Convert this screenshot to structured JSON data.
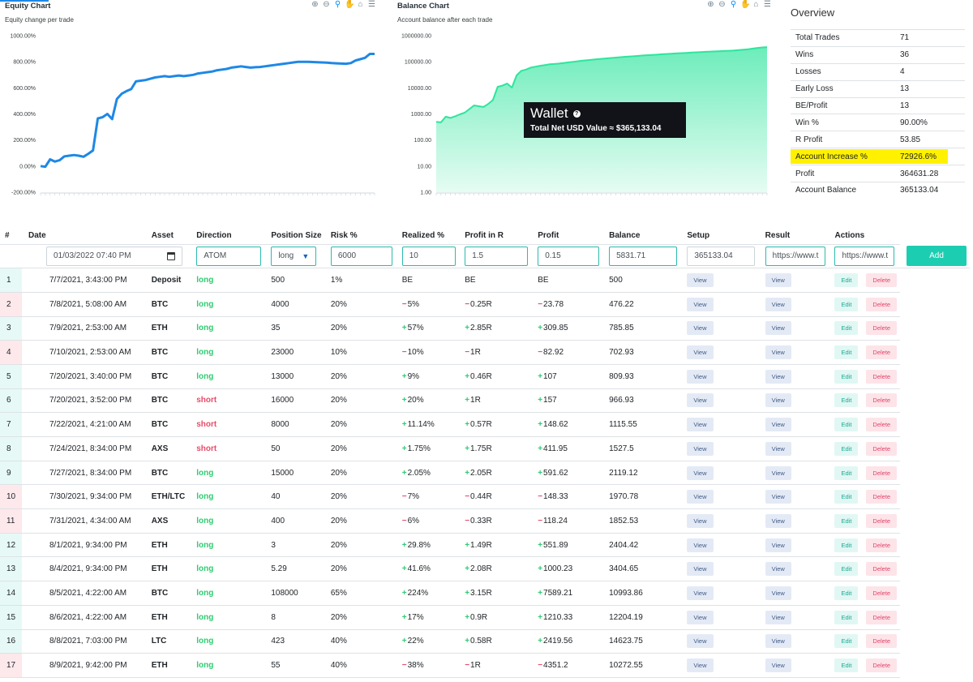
{
  "equity_chart": {
    "title": "Equity Chart",
    "subtitle": "Equity change per trade",
    "y_labels": [
      "1000.00%",
      "800.00%",
      "600.00%",
      "400.00%",
      "200.00%",
      "0.00%",
      "-200.00%"
    ],
    "color": "#1e88e5"
  },
  "balance_chart": {
    "title": "Balance Chart",
    "subtitle": "Account balance after each trade",
    "y_labels": [
      "1000000.00",
      "100000.00",
      "10000.00",
      "1000.00",
      "100.00",
      "10.00",
      "1.00"
    ],
    "color": "#2ee59d"
  },
  "chart_data": [
    {
      "type": "line",
      "title": "Equity Chart",
      "subtitle": "Equity change per trade",
      "ylim": [
        -200,
        1000
      ],
      "x": [
        1,
        2,
        3,
        4,
        5,
        6,
        7,
        8,
        9,
        10,
        11,
        12,
        13,
        14,
        15,
        16,
        17,
        18,
        19,
        20,
        21,
        22,
        23,
        24,
        25,
        26,
        27,
        28,
        29,
        30,
        31,
        32,
        33,
        34,
        35,
        36,
        37,
        38,
        39,
        40,
        41,
        42,
        43,
        44,
        45,
        46,
        47,
        48,
        49,
        50,
        51,
        52,
        53,
        54,
        55,
        56,
        57,
        58,
        59,
        60,
        61,
        62,
        63,
        64,
        65,
        66,
        67,
        68,
        69,
        70,
        71
      ],
      "y": [
        0,
        -5,
        52,
        35,
        45,
        75,
        80,
        85,
        80,
        72,
        95,
        120,
        365,
        375,
        400,
        360,
        515,
        555,
        575,
        590,
        650,
        655,
        660,
        670,
        680,
        685,
        690,
        685,
        690,
        695,
        690,
        695,
        700,
        710,
        715,
        720,
        725,
        735,
        740,
        745,
        755,
        760,
        765,
        760,
        755,
        758,
        760,
        765,
        770,
        775,
        780,
        785,
        790,
        795,
        800,
        800,
        800,
        798,
        796,
        795,
        793,
        790,
        788,
        786,
        785,
        790,
        810,
        820,
        830,
        860,
        860
      ],
      "color": "#1e88e5"
    },
    {
      "type": "area",
      "title": "Balance Chart",
      "subtitle": "Account balance after each trade",
      "yscale": "log",
      "ylim": [
        1,
        1000000
      ],
      "x": [
        1,
        2,
        3,
        4,
        5,
        6,
        7,
        8,
        9,
        10,
        11,
        12,
        13,
        14,
        15,
        16,
        17,
        18,
        19,
        20,
        21,
        22,
        23,
        24,
        25,
        26,
        27,
        28,
        29,
        30,
        31,
        32,
        33,
        34,
        35,
        36,
        37,
        38,
        39,
        40,
        41,
        42,
        43,
        44,
        45,
        46,
        47,
        48,
        49,
        50,
        51,
        52,
        53,
        54,
        55,
        56,
        57,
        58,
        59,
        60,
        61,
        62,
        63,
        64,
        65,
        66,
        67,
        68,
        69,
        70,
        71
      ],
      "y": [
        500,
        476.22,
        785.85,
        702.93,
        809.93,
        966.93,
        1115.55,
        1527.5,
        2119.12,
        1970.78,
        1852.53,
        2404.42,
        3404.65,
        10993.86,
        12204.19,
        14623.75,
        10272.55,
        30000,
        45000,
        50000,
        60000,
        65000,
        70000,
        75000,
        80000,
        82000,
        85000,
        90000,
        95000,
        100000,
        105000,
        110000,
        115000,
        120000,
        125000,
        130000,
        135000,
        140000,
        145000,
        150000,
        155000,
        160000,
        165000,
        170000,
        175000,
        180000,
        185000,
        190000,
        195000,
        200000,
        205000,
        210000,
        215000,
        220000,
        225000,
        230000,
        235000,
        240000,
        245000,
        250000,
        255000,
        260000,
        265000,
        270000,
        280000,
        290000,
        300000,
        320000,
        340000,
        355000,
        365133.04
      ],
      "color": "#2ee59d"
    }
  ],
  "wallet": {
    "title": "Wallet",
    "value_label": "Total Net USD Value ≈ $365,133.04"
  },
  "overview": {
    "title": "Overview",
    "rows": [
      {
        "k": "Total Trades",
        "v": "71"
      },
      {
        "k": "Wins",
        "v": "36"
      },
      {
        "k": "Losses",
        "v": "4"
      },
      {
        "k": "Early Loss",
        "v": "13"
      },
      {
        "k": "BE/Profit",
        "v": "13"
      },
      {
        "k": "Win %",
        "v": "90.00%"
      },
      {
        "k": "R Profit",
        "v": "53.85"
      },
      {
        "k": "Account Increase %",
        "v": "72926.6%"
      },
      {
        "k": "Profit",
        "v": "364631.28"
      },
      {
        "k": "Account Balance",
        "v": "365133.04"
      }
    ]
  },
  "table": {
    "headers": [
      "#",
      "Date",
      "Asset",
      "Direction",
      "Position Size",
      "Risk %",
      "Realized %",
      "Profit in R",
      "Profit",
      "Balance",
      "Setup",
      "Result",
      "Actions"
    ],
    "entry": {
      "date": "01/03/2022 07:40 PM",
      "asset": "ATOM",
      "direction": "long",
      "position_size": "6000",
      "risk": "10",
      "realized": "1.5",
      "profit_r": "0.15",
      "profit": "5831.71",
      "balance": "365133.04",
      "setup": "https://www.t",
      "result": "https://www.t",
      "add_label": "Add"
    },
    "buttons": {
      "view": "View",
      "edit": "Edit",
      "delete": "Delete"
    },
    "rows": [
      {
        "n": "1",
        "date": "7/7/2021, 3:43:00 PM",
        "asset": "Deposit",
        "dir": "long",
        "size": "500",
        "risk": "1%",
        "real": "BE",
        "r": "BE",
        "profit": "BE",
        "bal": "500"
      },
      {
        "n": "2",
        "date": "7/8/2021, 5:08:00 AM",
        "asset": "BTC",
        "dir": "long",
        "size": "4000",
        "risk": "20%",
        "real": "-5%",
        "r": "-0.25R",
        "profit": "-23.78",
        "bal": "476.22"
      },
      {
        "n": "3",
        "date": "7/9/2021, 2:53:00 AM",
        "asset": "ETH",
        "dir": "long",
        "size": "35",
        "risk": "20%",
        "real": "+57%",
        "r": "+2.85R",
        "profit": "+309.85",
        "bal": "785.85"
      },
      {
        "n": "4",
        "date": "7/10/2021, 2:53:00 AM",
        "asset": "BTC",
        "dir": "long",
        "size": "23000",
        "risk": "10%",
        "real": "-10%",
        "r": "-1R",
        "profit": "-82.92",
        "bal": "702.93"
      },
      {
        "n": "5",
        "date": "7/20/2021, 3:40:00 PM",
        "asset": "BTC",
        "dir": "long",
        "size": "13000",
        "risk": "20%",
        "real": "+9%",
        "r": "+0.46R",
        "profit": "+107",
        "bal": "809.93"
      },
      {
        "n": "6",
        "date": "7/20/2021, 3:52:00 PM",
        "asset": "BTC",
        "dir": "short",
        "size": "16000",
        "risk": "20%",
        "real": "+20%",
        "r": "+1R",
        "profit": "+157",
        "bal": "966.93"
      },
      {
        "n": "7",
        "date": "7/22/2021, 4:21:00 AM",
        "asset": "BTC",
        "dir": "short",
        "size": "8000",
        "risk": "20%",
        "real": "+11.14%",
        "r": "+0.57R",
        "profit": "+148.62",
        "bal": "1115.55"
      },
      {
        "n": "8",
        "date": "7/24/2021, 8:34:00 PM",
        "asset": "AXS",
        "dir": "short",
        "size": "50",
        "risk": "20%",
        "real": "+1.75%",
        "r": "+1.75R",
        "profit": "+411.95",
        "bal": "1527.5"
      },
      {
        "n": "9",
        "date": "7/27/2021, 8:34:00 PM",
        "asset": "BTC",
        "dir": "long",
        "size": "15000",
        "risk": "20%",
        "real": "+2.05%",
        "r": "+2.05R",
        "profit": "+591.62",
        "bal": "2119.12"
      },
      {
        "n": "10",
        "date": "7/30/2021, 9:34:00 PM",
        "asset": "ETH/LTC",
        "dir": "long",
        "size": "40",
        "risk": "20%",
        "real": "-7%",
        "r": "-0.44R",
        "profit": "-148.33",
        "bal": "1970.78"
      },
      {
        "n": "11",
        "date": "7/31/2021, 4:34:00 AM",
        "asset": "AXS",
        "dir": "long",
        "size": "400",
        "risk": "20%",
        "real": "-6%",
        "r": "-0.33R",
        "profit": "-118.24",
        "bal": "1852.53"
      },
      {
        "n": "12",
        "date": "8/1/2021, 9:34:00 PM",
        "asset": "ETH",
        "dir": "long",
        "size": "3",
        "risk": "20%",
        "real": "+29.8%",
        "r": "+1.49R",
        "profit": "+551.89",
        "bal": "2404.42"
      },
      {
        "n": "13",
        "date": "8/4/2021, 9:34:00 PM",
        "asset": "ETH",
        "dir": "long",
        "size": "5.29",
        "risk": "20%",
        "real": "+41.6%",
        "r": "+2.08R",
        "profit": "+1000.23",
        "bal": "3404.65"
      },
      {
        "n": "14",
        "date": "8/5/2021, 4:22:00 AM",
        "asset": "BTC",
        "dir": "long",
        "size": "108000",
        "risk": "65%",
        "real": "+224%",
        "r": "+3.15R",
        "profit": "+7589.21",
        "bal": "10993.86"
      },
      {
        "n": "15",
        "date": "8/6/2021, 4:22:00 AM",
        "asset": "ETH",
        "dir": "long",
        "size": "8",
        "risk": "20%",
        "real": "+17%",
        "r": "+0.9R",
        "profit": "+1210.33",
        "bal": "12204.19"
      },
      {
        "n": "16",
        "date": "8/8/2021, 7:03:00 PM",
        "asset": "LTC",
        "dir": "long",
        "size": "423",
        "risk": "40%",
        "real": "+22%",
        "r": "+0.58R",
        "profit": "+2419.56",
        "bal": "14623.75"
      },
      {
        "n": "17",
        "date": "8/9/2021, 9:42:00 PM",
        "asset": "ETH",
        "dir": "long",
        "size": "55",
        "risk": "40%",
        "real": "-38%",
        "r": "-1R",
        "profit": "-4351.2",
        "bal": "10272.55"
      }
    ]
  }
}
